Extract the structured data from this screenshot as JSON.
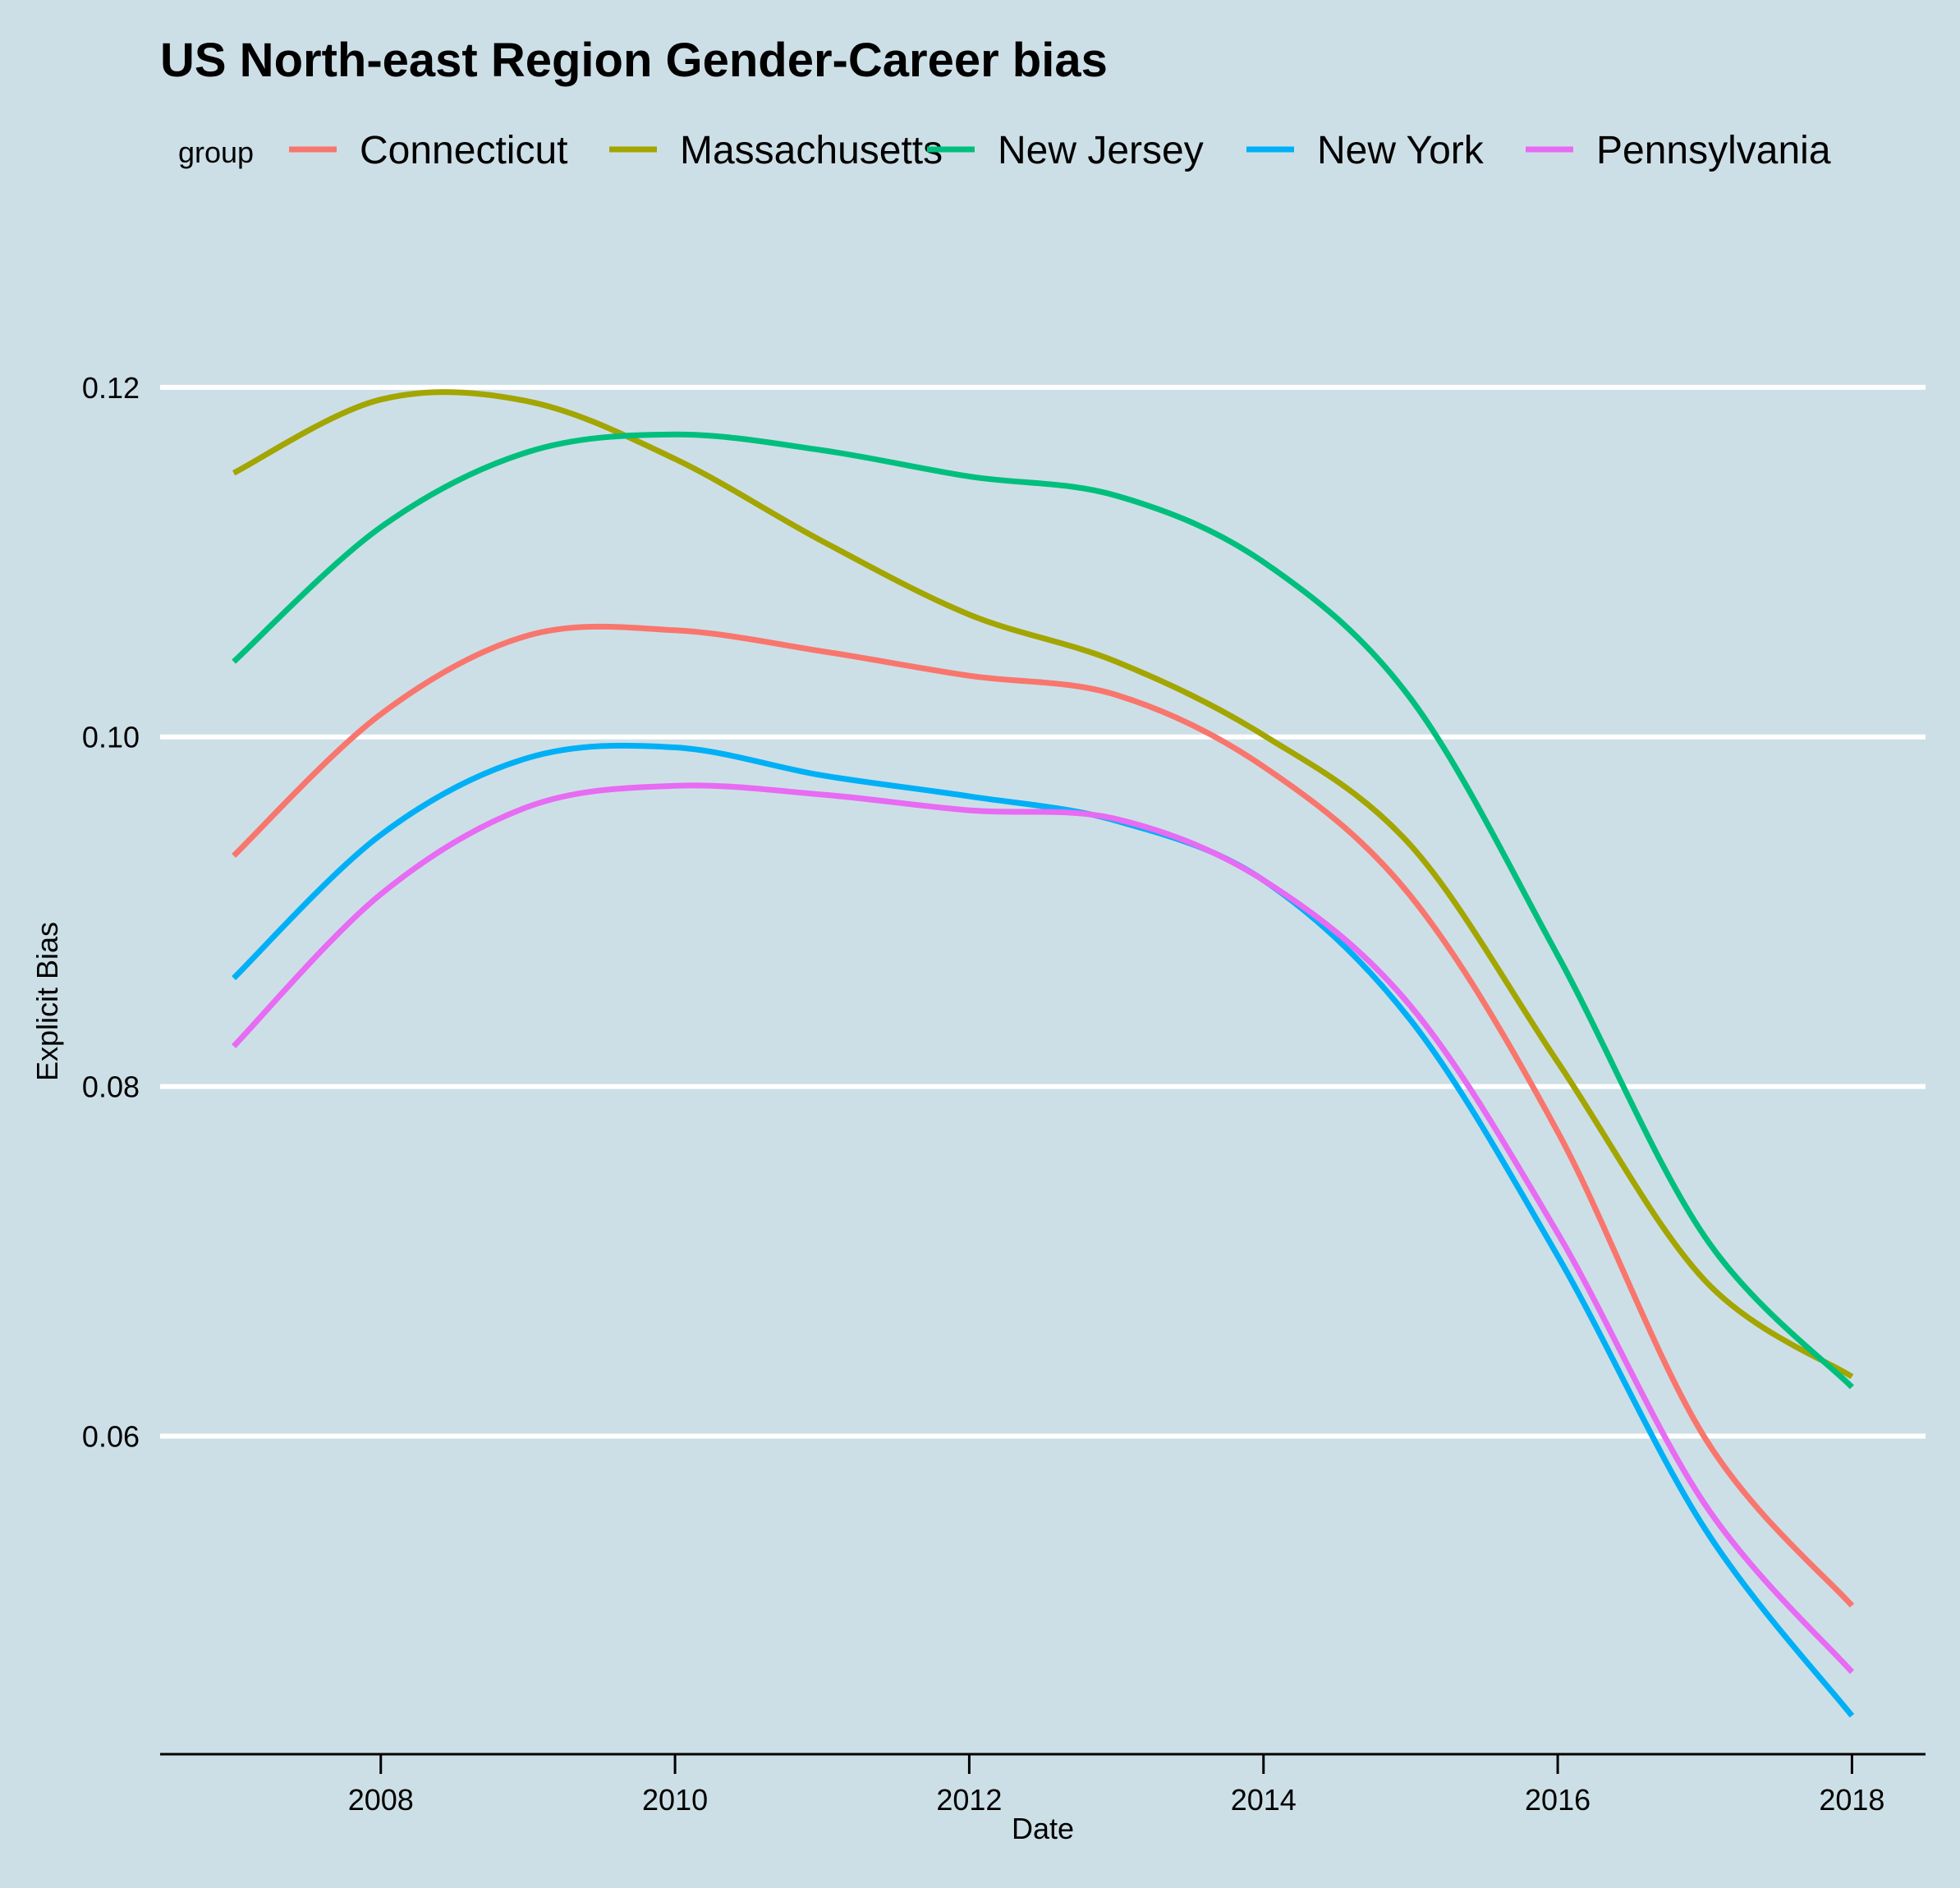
{
  "chart_data": {
    "type": "line",
    "title": "US North-east Region Gender-Career bias",
    "xlabel": "Date",
    "ylabel": "Explicit Bias",
    "legend_title": "group",
    "legend_position": "top",
    "grid": "horizontal major lines, white",
    "xlim": [
      2006.5,
      2018.5
    ],
    "ylim": [
      0.0418,
      0.1276
    ],
    "x_ticks": [
      2008,
      2010,
      2012,
      2014,
      2016,
      2018
    ],
    "y_ticks": [
      0.06,
      0.08,
      0.1,
      0.12
    ],
    "y_tick_labels": [
      "0.06",
      "0.08",
      "0.10",
      "0.12"
    ],
    "x": [
      2007,
      2008,
      2009,
      2010,
      2011,
      2012,
      2013,
      2014,
      2015,
      2016,
      2017,
      2018
    ],
    "series": [
      {
        "name": "Connecticut",
        "color": "#f8766d",
        "values": [
          0.0932,
          0.1013,
          0.1058,
          0.1061,
          0.1049,
          0.1035,
          0.1024,
          0.0983,
          0.0909,
          0.0774,
          0.0599,
          0.0503
        ]
      },
      {
        "name": "Massachusetts",
        "color": "#a3a500",
        "values": [
          0.1151,
          0.1193,
          0.1192,
          0.1159,
          0.1112,
          0.107,
          0.1043,
          0.1001,
          0.0938,
          0.0814,
          0.0689,
          0.0634
        ]
      },
      {
        "name": "New Jersey",
        "color": "#00bf7d",
        "values": [
          0.1043,
          0.112,
          0.1163,
          0.1173,
          0.1164,
          0.1149,
          0.1138,
          0.11,
          0.1022,
          0.0875,
          0.0714,
          0.0628
        ]
      },
      {
        "name": "New York",
        "color": "#00b0f6",
        "values": [
          0.0862,
          0.0944,
          0.0988,
          0.0994,
          0.0978,
          0.0966,
          0.0952,
          0.0918,
          0.0838,
          0.0703,
          0.0547,
          0.044
        ]
      },
      {
        "name": "Pennsylvania",
        "color": "#e76bf3",
        "values": [
          0.0823,
          0.091,
          0.096,
          0.0972,
          0.0967,
          0.0958,
          0.0953,
          0.0918,
          0.0846,
          0.0716,
          0.0561,
          0.0465
        ]
      }
    ]
  }
}
